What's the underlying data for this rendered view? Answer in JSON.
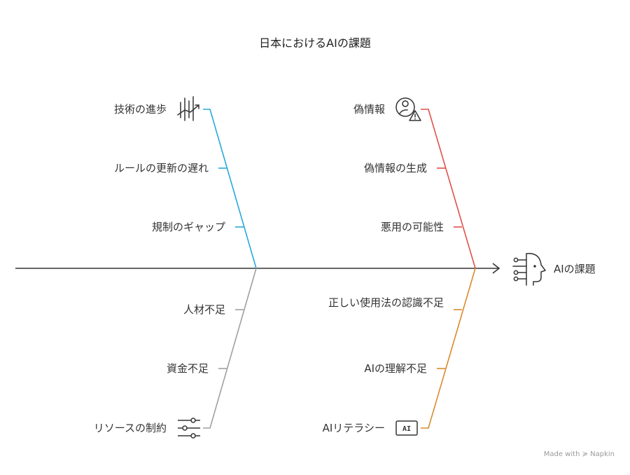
{
  "title": "日本におけるAIの課題",
  "head": {
    "label": "AIの課題",
    "icon": "ai-head-icon"
  },
  "branches": {
    "top_left": {
      "color": "#2AA8D8",
      "items": [
        "技術の進歩",
        "ルールの更新の遅れ",
        "規制のギャップ"
      ],
      "icon": "growth-chart-icon"
    },
    "top_right": {
      "color": "#E0504A",
      "items": [
        "偽情報",
        "偽情報の生成",
        "悪用の可能性"
      ],
      "icon": "user-warning-icon"
    },
    "bottom_left": {
      "color": "#A0A0A0",
      "items": [
        "人材不足",
        "資金不足",
        "リソースの制約"
      ],
      "icon": "sliders-icon"
    },
    "bottom_right": {
      "color": "#D98A2E",
      "items": [
        "正しい使用法の認識不足",
        "AIの理解不足",
        "AIリテラシー"
      ],
      "icon": "ai-chip-icon",
      "icon_text": "AI"
    }
  },
  "watermark": "Made with ≽ Napkin"
}
